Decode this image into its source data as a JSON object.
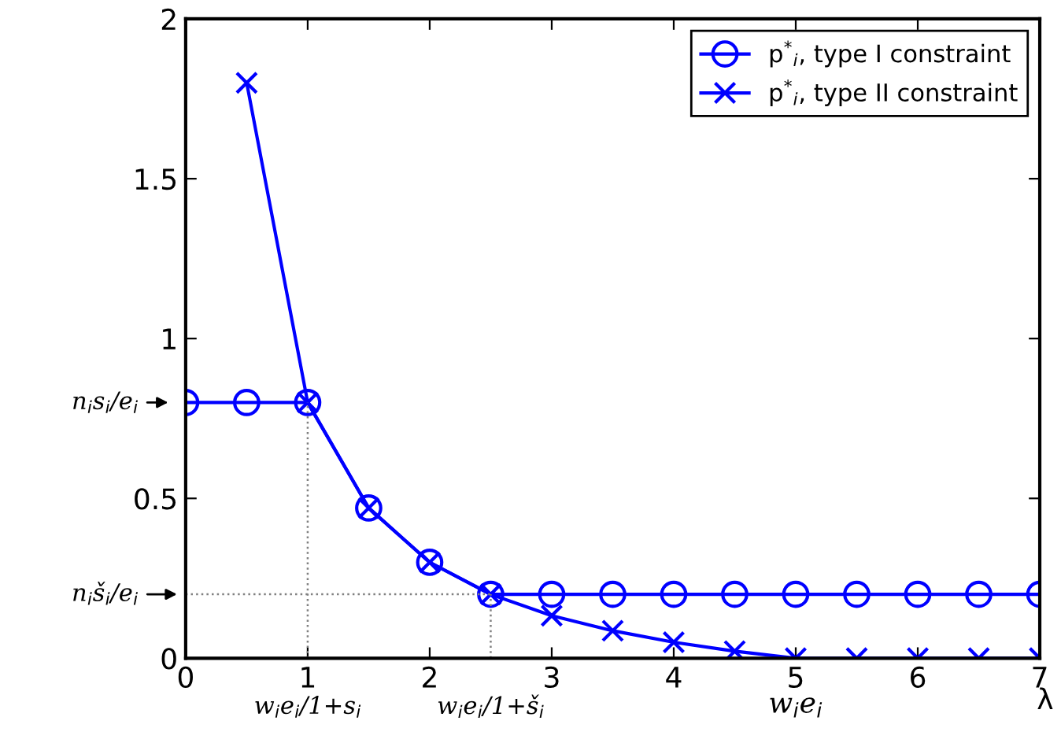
{
  "chart_data": {
    "type": "line",
    "xlabel": "λ",
    "x": [
      0,
      0.5,
      1,
      1.5,
      2,
      2.5,
      3,
      3.5,
      4,
      4.5,
      5,
      5.5,
      6,
      6.5,
      7
    ],
    "series": [
      {
        "name": "p$^{*}$$_{i}$, type I constraint",
        "color": "#0000ff",
        "marker": "circle",
        "values": [
          0.8,
          0.8,
          0.8,
          0.47,
          0.3,
          0.2,
          0.2,
          0.2,
          0.2,
          0.2,
          0.2,
          0.2,
          0.2,
          0.2,
          0.2
        ]
      },
      {
        "name": "p$^{*}$$_{i}$, type II constraint",
        "color": "#0000ff",
        "marker": "cross",
        "values": [
          null,
          1.8,
          0.8,
          0.47,
          0.3,
          0.2,
          0.133,
          0.086,
          0.05,
          0.022,
          0,
          0,
          0,
          0,
          0
        ]
      }
    ],
    "xlim": [
      0,
      7
    ],
    "ylim": [
      0,
      2
    ],
    "xticks": [
      0,
      1,
      2,
      3,
      4,
      5,
      6,
      7
    ],
    "yticks": [
      0,
      0.5,
      1,
      1.5,
      2
    ],
    "grid": false,
    "legend": "top right",
    "line_style": "solid",
    "ref_lines": [
      {
        "axis": "y",
        "value": 0.2,
        "label": "n$_{i}$š$_{i}$/e$_{i}$",
        "color": "#808080",
        "line_style": "dotted"
      },
      {
        "axis": "x",
        "value": 1,
        "label": "w$_{i}$e$_{i}$/1+s$_{i}$",
        "color": "#808080",
        "line_style": "dotted"
      },
      {
        "axis": "x",
        "value": 2.5,
        "label": "w$_{i}$e$_{i}$/1+š$_{i}$",
        "color": "#808080",
        "line_style": "dotted"
      }
    ],
    "annotations": [
      {
        "text": "w$_{i}$e$_{i}$",
        "x": 5,
        "y": 0
      },
      {
        "text": "n$_{i}$s$_{i}$/e$_{i}$",
        "x": 0,
        "y": 0.8
      }
    ]
  }
}
